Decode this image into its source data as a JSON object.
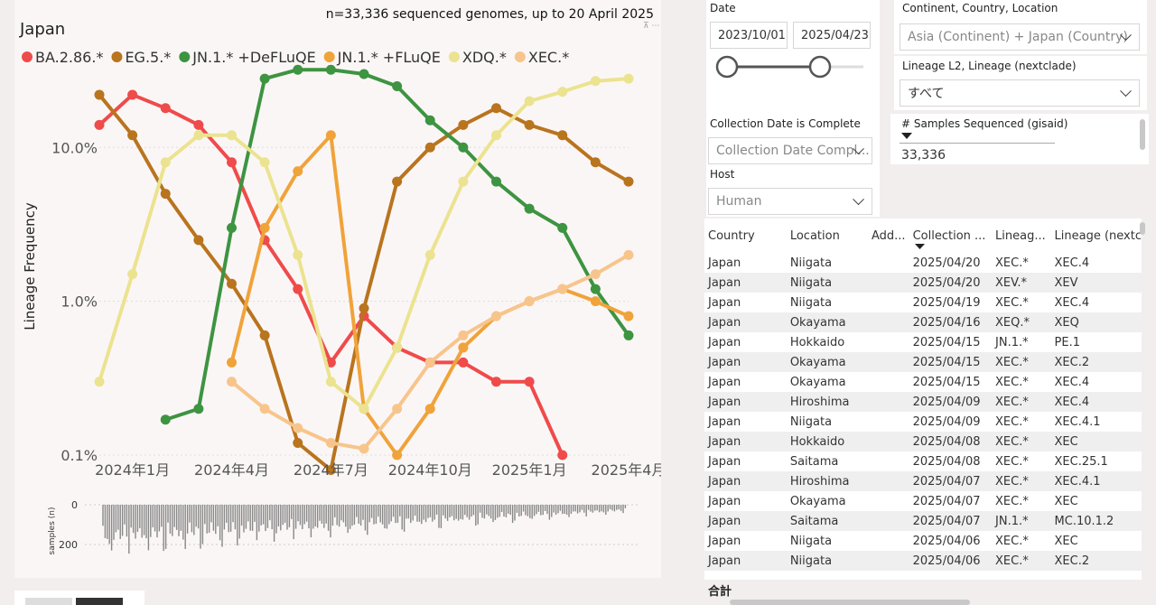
{
  "chart_panel": {
    "title": "Japan",
    "subtitle": "n=33,336 sequenced genomes, up to 20 April 2025",
    "ylabel": "Lineage Frequency",
    "y_ticks": [
      "10.0%",
      "1.0%",
      "0.1%"
    ],
    "x_ticks": [
      "2024年1月",
      "2024年4月",
      "2024年7月",
      "2024年10月",
      "2025年1月",
      "2025年4月"
    ],
    "samples_label": "samples (n)",
    "samples_ticks": [
      "0",
      "200"
    ]
  },
  "chart_data": {
    "type": "line",
    "title": "Japan",
    "xlabel": "",
    "ylabel": "Lineage Frequency",
    "y_scale": "log",
    "ylim": [
      0.001,
      0.3
    ],
    "x": [
      "2023-12",
      "2024-01",
      "2024-02",
      "2024-03",
      "2024-04",
      "2024-05",
      "2024-06",
      "2024-07",
      "2024-08",
      "2024-09",
      "2024-10",
      "2024-11",
      "2024-12",
      "2025-01",
      "2025-02",
      "2025-03",
      "2025-04"
    ],
    "series": [
      {
        "name": "BA.2.86.*",
        "color": "#ef4b4b",
        "values": [
          0.14,
          0.22,
          0.18,
          0.14,
          0.08,
          0.025,
          0.012,
          0.004,
          0.008,
          0.005,
          0.004,
          0.004,
          0.003,
          0.003,
          0.001,
          null,
          null
        ]
      },
      {
        "name": "EG.5.*",
        "color": "#b9741e",
        "values": [
          0.22,
          0.12,
          0.05,
          0.025,
          0.013,
          0.006,
          0.0012,
          0.0008,
          0.009,
          0.06,
          0.1,
          0.14,
          0.18,
          0.14,
          0.12,
          0.08,
          0.06
        ]
      },
      {
        "name": "JN.1.* +DeFLuQE",
        "color": "#3d9441",
        "values": [
          null,
          null,
          0.0017,
          0.002,
          0.03,
          0.28,
          0.32,
          0.32,
          0.3,
          0.25,
          0.15,
          0.1,
          0.06,
          0.04,
          0.03,
          0.012,
          0.006
        ]
      },
      {
        "name": "JN.1.* +FLuQE",
        "color": "#f0a33a",
        "values": [
          null,
          null,
          null,
          null,
          0.004,
          0.03,
          0.07,
          0.12,
          0.002,
          0.001,
          0.002,
          0.005,
          0.008,
          0.01,
          0.012,
          0.01,
          0.008
        ]
      },
      {
        "name": "XDQ.*",
        "color": "#ebe38f",
        "values": [
          0.003,
          0.015,
          0.08,
          0.12,
          0.12,
          0.08,
          0.02,
          0.003,
          0.002,
          0.005,
          0.02,
          0.06,
          0.12,
          0.2,
          0.23,
          0.27,
          0.28
        ]
      },
      {
        "name": "XEC.*",
        "color": "#f7c58c",
        "values": [
          null,
          null,
          null,
          null,
          0.003,
          0.002,
          0.0015,
          0.0012,
          0.0011,
          0.002,
          0.004,
          0.006,
          0.008,
          0.01,
          0.012,
          0.015,
          0.02
        ]
      }
    ]
  },
  "filters": {
    "date_label": "Date",
    "date_start": "2023/10/01",
    "date_end": "2025/04/23",
    "region_label": "Continent, Country, Location",
    "region_value": "Asia (Continent) + Japan (Country)",
    "lineage_label": "Lineage L2, Lineage (nextclade)",
    "lineage_value": "すべて",
    "samples_label": "# Samples Sequenced (gisaid)",
    "samples_value": "33,336",
    "complete_label": "Collection Date is Complete",
    "complete_value": "Collection Date Compl...",
    "host_label": "Host",
    "host_value": "Human"
  },
  "table": {
    "headers": [
      "Country",
      "Location",
      "Add...",
      "Collection ...",
      "Lineag...",
      "Lineage (nextc"
    ],
    "rows": [
      [
        "Japan",
        "Niigata",
        "",
        "2025/04/20",
        "XEC.*",
        "XEC.4"
      ],
      [
        "Japan",
        "Niigata",
        "",
        "2025/04/20",
        "XEV.*",
        "XEV"
      ],
      [
        "Japan",
        "Niigata",
        "",
        "2025/04/19",
        "XEC.*",
        "XEC.4"
      ],
      [
        "Japan",
        "Okayama",
        "",
        "2025/04/16",
        "XEQ.*",
        "XEQ"
      ],
      [
        "Japan",
        "Hokkaido",
        "",
        "2025/04/15",
        "JN.1.*",
        "PE.1"
      ],
      [
        "Japan",
        "Okayama",
        "",
        "2025/04/15",
        "XEC.*",
        "XEC.2"
      ],
      [
        "Japan",
        "Okayama",
        "",
        "2025/04/15",
        "XEC.*",
        "XEC.4"
      ],
      [
        "Japan",
        "Hiroshima",
        "",
        "2025/04/09",
        "XEC.*",
        "XEC.4"
      ],
      [
        "Japan",
        "Niigata",
        "",
        "2025/04/09",
        "XEC.*",
        "XEC.4.1"
      ],
      [
        "Japan",
        "Hokkaido",
        "",
        "2025/04/08",
        "XEC.*",
        "XEC"
      ],
      [
        "Japan",
        "Saitama",
        "",
        "2025/04/08",
        "XEC.*",
        "XEC.25.1"
      ],
      [
        "Japan",
        "Hiroshima",
        "",
        "2025/04/07",
        "XEC.*",
        "XEC.4.1"
      ],
      [
        "Japan",
        "Okayama",
        "",
        "2025/04/07",
        "XEC.*",
        "XEC"
      ],
      [
        "Japan",
        "Saitama",
        "",
        "2025/04/07",
        "JN.1.*",
        "MC.10.1.2"
      ],
      [
        "Japan",
        "Niigata",
        "",
        "2025/04/06",
        "XEC.*",
        "XEC"
      ],
      [
        "Japan",
        "Niigata",
        "",
        "2025/04/06",
        "XEC.*",
        "XEC.2"
      ]
    ],
    "total_label": "合計"
  },
  "colors": {
    "BA.2.86": "#ef4b4b",
    "EG.5": "#b9741e",
    "JN1_DeFLuQE": "#3d9441",
    "JN1_FLuQE": "#f0a33a",
    "XDQ": "#ebe38f",
    "XEC": "#f7c58c"
  }
}
